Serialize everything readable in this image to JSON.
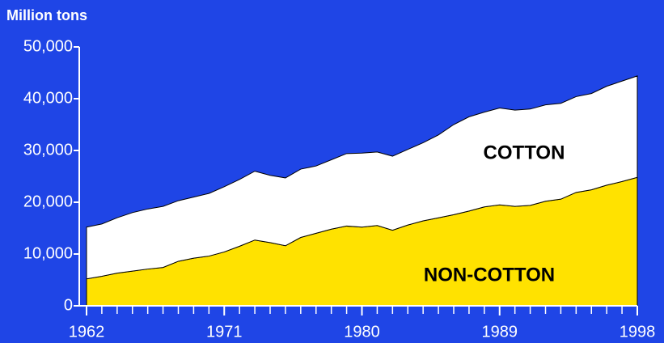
{
  "chart_data": {
    "type": "stacked_area",
    "y_label": "Million tons",
    "x": [
      1962,
      1963,
      1964,
      1965,
      1966,
      1967,
      1968,
      1969,
      1970,
      1971,
      1972,
      1973,
      1974,
      1975,
      1976,
      1977,
      1978,
      1979,
      1980,
      1981,
      1982,
      1983,
      1984,
      1985,
      1986,
      1987,
      1988,
      1989,
      1990,
      1991,
      1992,
      1993,
      1994,
      1995,
      1996,
      1997,
      1998
    ],
    "series": [
      {
        "name": "NON-COTTON",
        "color": "#ffe200",
        "values": [
          5200,
          5700,
          6300,
          6700,
          7100,
          7400,
          8600,
          9200,
          9600,
          10400,
          11500,
          12700,
          12200,
          11600,
          13200,
          14000,
          14800,
          15400,
          15200,
          15500,
          14600,
          15600,
          16400,
          17000,
          17600,
          18300,
          19100,
          19500,
          19200,
          19400,
          20200,
          20600,
          21900,
          22400,
          23300,
          24000,
          24800
        ]
      },
      {
        "name": "COTTON",
        "color": "#ffffff",
        "values": [
          10000,
          10100,
          10700,
          11300,
          11600,
          11800,
          11700,
          11800,
          12100,
          12600,
          12900,
          13300,
          13000,
          13100,
          13200,
          13000,
          13400,
          14000,
          14300,
          14200,
          14300,
          14600,
          15100,
          16000,
          17400,
          18200,
          18300,
          18700,
          18600,
          18600,
          18600,
          18500,
          18500,
          18600,
          19100,
          19400,
          19600
        ]
      }
    ],
    "xlim": [
      1962,
      1998
    ],
    "xticks": [
      1962,
      1971,
      1980,
      1989,
      1998
    ],
    "ylim": [
      0,
      50000
    ],
    "yticks": [
      0,
      {
        "value": 10000,
        "label": "10,000"
      },
      {
        "value": 20000,
        "label": "20,000"
      },
      {
        "value": 30000,
        "label": "30,000"
      },
      {
        "value": 40000,
        "label": "40,000"
      },
      {
        "value": 50000,
        "label": "50,000"
      }
    ]
  }
}
